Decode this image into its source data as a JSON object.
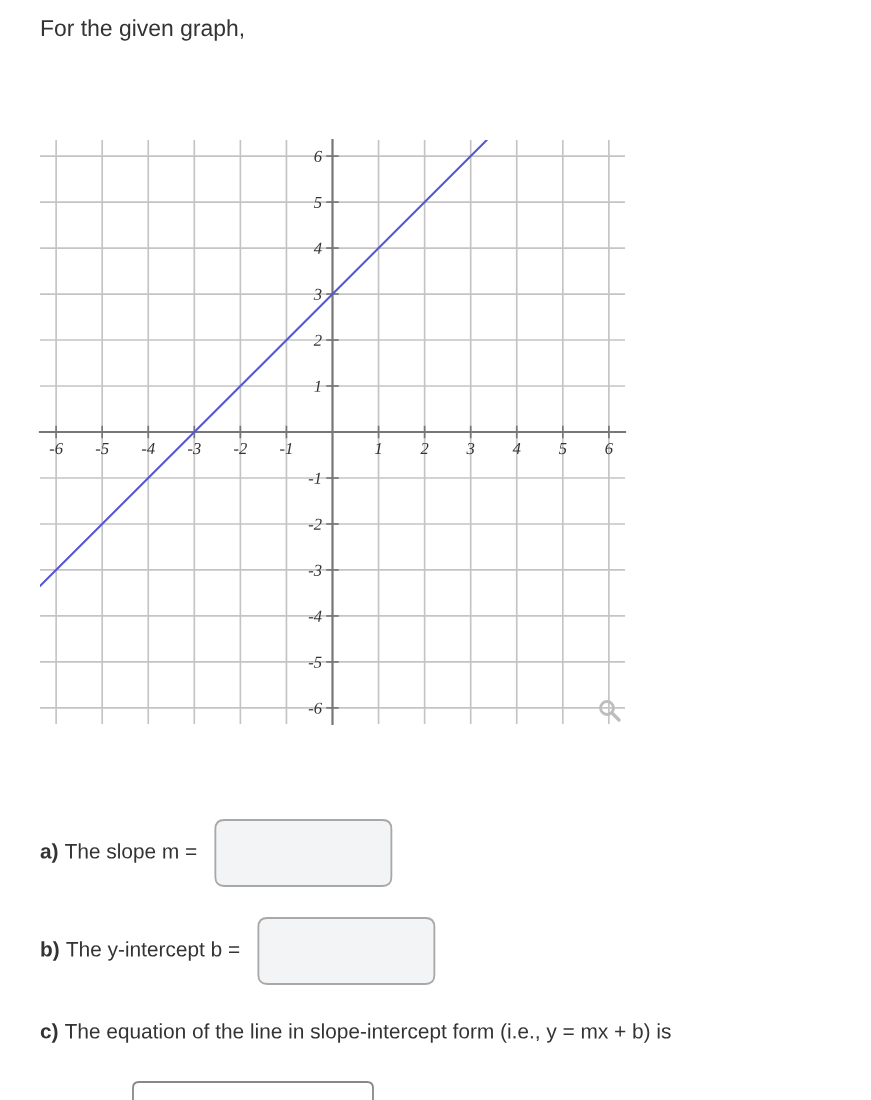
{
  "chart_data": {
    "type": "line",
    "title": "For the given graph,",
    "annotations": [
      "a) The slope m =",
      "b) The y-intercept b =",
      "c) The equation of the line in slope-intercept form (i.e., y = mx + b) is"
    ],
    "series": [
      {
        "color": "#5757d6",
        "x": [
          -6.35,
          3.35
        ],
        "values": [
          -3.35,
          6.35
        ]
      }
    ],
    "xlim": [
      -6.35,
      6.35
    ],
    "ylim": [
      -6.35,
      6.35
    ],
    "xticks": [
      -6,
      -5,
      -4,
      -3,
      -2,
      -1,
      1,
      2,
      3,
      4,
      5,
      6
    ],
    "yticks": [
      -6,
      -5,
      -4,
      -3,
      -2,
      -1,
      1,
      2,
      3,
      4,
      5,
      6
    ],
    "grid": true
  }
}
